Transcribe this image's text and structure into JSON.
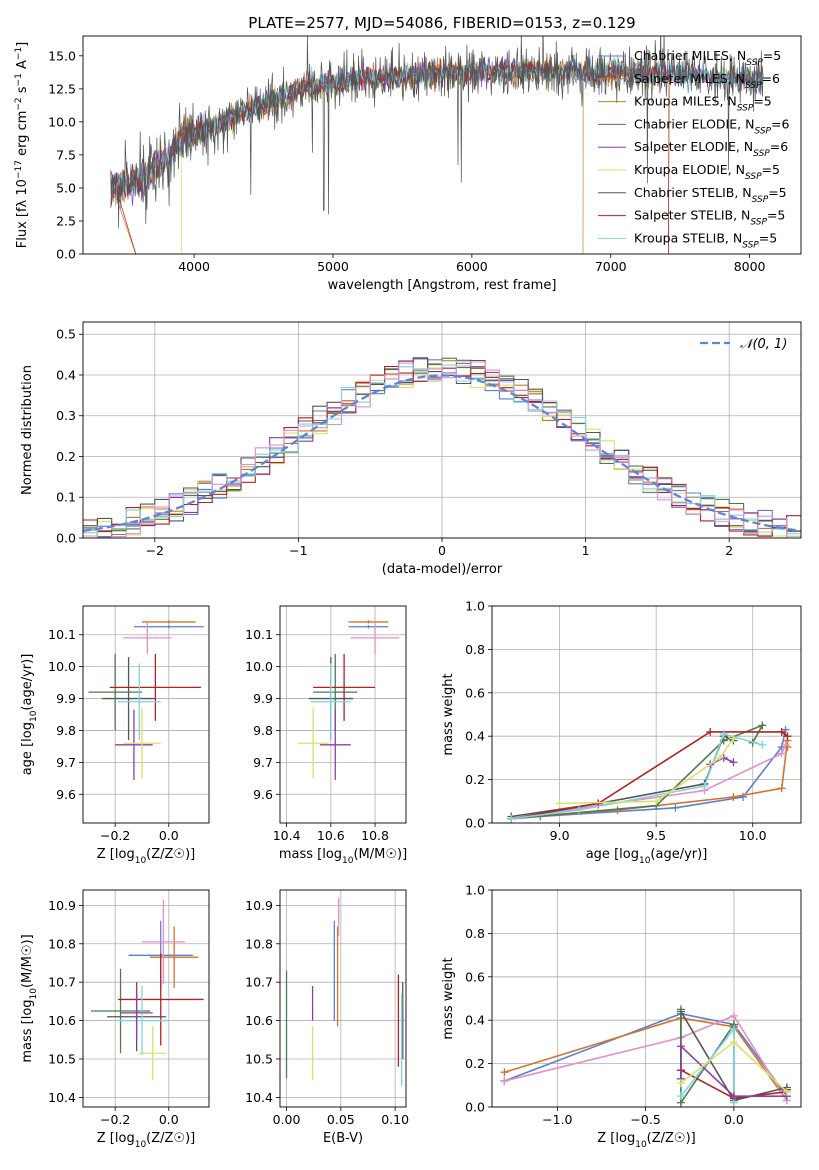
{
  "figure_title": "PLATE=2577, MJD=54086, FIBERID=0153, z=0.129",
  "chart_data": [
    {
      "id": "spectrum",
      "type": "line",
      "title": "PLATE=2577, MJD=54086, FIBERID=0153, z=0.129",
      "xlabel": "wavelength [Angstrom, rest frame]",
      "ylabel": "Flux [f_λ 10^-17 erg cm^-2 s^-1 A^-1]",
      "xlim": [
        3200,
        8370
      ],
      "ylim": [
        0,
        16.5
      ],
      "xticks": [
        "4000",
        "5000",
        "6000",
        "7000",
        "8000"
      ],
      "yticks": [
        "0.0",
        "2.5",
        "5.0",
        "7.5",
        "10.0",
        "12.5",
        "15.0"
      ],
      "grid": false,
      "legend_position": "upper right",
      "shape": {
        "wavelength": [
          3400,
          3500,
          3600,
          3700,
          3800,
          3900,
          4000,
          4100,
          4200,
          4400,
          4600,
          4800,
          5000,
          5200,
          5400,
          5600,
          5800,
          6000,
          6200,
          6400,
          6600,
          6800,
          7000,
          7200,
          7400,
          7600,
          7800,
          8000,
          8100
        ],
        "flux": [
          4.8,
          5.2,
          5.6,
          6.3,
          7.2,
          8.5,
          9.2,
          9.6,
          10.0,
          10.9,
          11.8,
          12.6,
          13.0,
          13.3,
          13.4,
          13.5,
          13.7,
          13.8,
          13.8,
          13.8,
          13.8,
          13.8,
          13.7,
          13.6,
          13.6,
          13.5,
          13.3,
          13.2,
          13.1
        ]
      },
      "series": [
        {
          "name": "Chabrier MILES, N_SSP=5",
          "color": "#5a7fd6"
        },
        {
          "name": "Salpeter MILES, N_SSP=6",
          "color": "#d4722a"
        },
        {
          "name": "Kroupa MILES, N_SSP=5",
          "color": "#b8862a"
        },
        {
          "name": "Chabrier ELODIE, N_SSP=6",
          "color": "#4e7a4e"
        },
        {
          "name": "Salpeter ELODIE, N_SSP=6",
          "color": "#8b3fa8"
        },
        {
          "name": "Kroupa ELODIE, N_SSP=5",
          "color": "#d7e26a"
        },
        {
          "name": "Chabrier STELIB, N_SSP=5",
          "color": "#555555"
        },
        {
          "name": "Salpeter STELIB, N_SSP=5",
          "color": "#b22222"
        },
        {
          "name": "Kroupa STELIB, N_SSP=5",
          "color": "#7fd3e0"
        }
      ]
    },
    {
      "id": "residuals",
      "type": "line",
      "xlabel": "(data-model)/error",
      "ylabel": "Normed distribution",
      "xlim": [
        -2.5,
        2.5
      ],
      "ylim": [
        0,
        0.53
      ],
      "xticks": [
        "−2",
        "−1",
        "0",
        "1",
        "2"
      ],
      "yticks": [
        "0.0",
        "0.1",
        "0.2",
        "0.3",
        "0.4",
        "0.5"
      ],
      "grid": true,
      "legend_position": "upper right",
      "normal_curve": {
        "name": "𝒩(0, 1)",
        "color": "#5b86d6",
        "style": "dashed"
      },
      "histogram_bin_width": 0.1,
      "histogram_colors": [
        "#5a7fd6",
        "#d4722a",
        "#4e7a4e",
        "#8b3fa8",
        "#d7e26a",
        "#555555",
        "#b22222",
        "#7fd3e0",
        "#e48fc9"
      ]
    },
    {
      "id": "age-vs-z",
      "type": "scatter",
      "xlabel": "Z [log10(Z/Z☉)]",
      "ylabel": "age [log10(age/yr)]",
      "xlim": [
        -0.32,
        0.15
      ],
      "ylim": [
        9.51,
        10.19
      ],
      "xticks": [
        "−0.2",
        "0.0"
      ],
      "yticks": [
        "9.6",
        "9.7",
        "9.8",
        "9.9",
        "10.0",
        "10.1"
      ],
      "grid": true,
      "points": [
        {
          "color": "#5a7fd6",
          "x": 0.0,
          "xerr": 0.13,
          "y": 10.125,
          "yerr": 0.005
        },
        {
          "color": "#d4722a",
          "x": 0.0,
          "xerr": 0.1,
          "y": 10.14,
          "yerr": 0.005
        },
        {
          "color": "#e48fc9",
          "x": -0.08,
          "xerr": 0.09,
          "y": 10.09,
          "yerr": 0.05
        },
        {
          "color": "#555555",
          "x": -0.15,
          "xerr": 0.1,
          "y": 9.9,
          "yerr": 0.13
        },
        {
          "color": "#4e7a4e",
          "x": -0.2,
          "xerr": 0.1,
          "y": 9.92,
          "yerr": 0.12
        },
        {
          "color": "#b22222",
          "x": -0.05,
          "xerr": 0.17,
          "y": 9.935,
          "yerr": 0.105
        },
        {
          "color": "#7fd3e0",
          "x": -0.11,
          "xerr": 0.08,
          "y": 9.89,
          "yerr": 0.12
        },
        {
          "color": "#8b3fa8",
          "x": -0.13,
          "xerr": 0.07,
          "y": 9.755,
          "yerr": 0.11
        },
        {
          "color": "#d7e26a",
          "x": -0.1,
          "xerr": 0.07,
          "y": 9.76,
          "yerr": 0.11
        }
      ]
    },
    {
      "id": "age-vs-mass",
      "type": "scatter",
      "xlabel": "mass [log10(M/M☉)]",
      "ylabel": "",
      "xlim": [
        10.37,
        10.94
      ],
      "ylim": [
        9.51,
        10.19
      ],
      "xticks": [
        "10.4",
        "10.6",
        "10.8"
      ],
      "yticks": [
        "9.6",
        "9.7",
        "9.8",
        "9.9",
        "10.0",
        "10.1"
      ],
      "grid": true,
      "points": [
        {
          "color": "#5a7fd6",
          "x": 10.77,
          "xerr": 0.09,
          "y": 10.125,
          "yerr": 0.005
        },
        {
          "color": "#d4722a",
          "x": 10.77,
          "xerr": 0.09,
          "y": 10.14,
          "yerr": 0.005
        },
        {
          "color": "#e48fc9",
          "x": 10.8,
          "xerr": 0.11,
          "y": 10.09,
          "yerr": 0.05
        },
        {
          "color": "#555555",
          "x": 10.6,
          "xerr": 0.1,
          "y": 9.9,
          "yerr": 0.13
        },
        {
          "color": "#4e7a4e",
          "x": 10.62,
          "xerr": 0.1,
          "y": 9.92,
          "yerr": 0.12
        },
        {
          "color": "#b22222",
          "x": 10.66,
          "xerr": 0.14,
          "y": 9.935,
          "yerr": 0.105
        },
        {
          "color": "#7fd3e0",
          "x": 10.6,
          "xerr": 0.09,
          "y": 9.89,
          "yerr": 0.12
        },
        {
          "color": "#8b3fa8",
          "x": 10.62,
          "xerr": 0.07,
          "y": 9.755,
          "yerr": 0.11
        },
        {
          "color": "#d7e26a",
          "x": 10.52,
          "xerr": 0.07,
          "y": 9.76,
          "yerr": 0.11
        }
      ]
    },
    {
      "id": "massweight-vs-age",
      "type": "line",
      "xlabel": "age [log10(age/yr)]",
      "ylabel": "mass weight",
      "xlim": [
        8.65,
        10.25
      ],
      "ylim": [
        0,
        1.0
      ],
      "xticks": [
        "9.0",
        "9.5",
        "10.0"
      ],
      "yticks": [
        "0.0",
        "0.2",
        "0.4",
        "0.6",
        "0.8",
        "1.0"
      ],
      "grid": true,
      "series": [
        {
          "color": "#5a7fd6",
          "x": [
            8.75,
            8.9,
            9.6,
            9.95,
            10.15,
            10.17
          ],
          "y": [
            0.02,
            0.03,
            0.07,
            0.12,
            0.35,
            0.43
          ]
        },
        {
          "color": "#d4722a",
          "x": [
            8.75,
            9.3,
            9.9,
            10.15,
            10.18,
            10.18
          ],
          "y": [
            0.02,
            0.06,
            0.12,
            0.16,
            0.38,
            0.35
          ]
        },
        {
          "color": "#e48fc9",
          "x": [
            8.75,
            9.2,
            9.75,
            10.15,
            10.17
          ],
          "y": [
            0.02,
            0.08,
            0.15,
            0.32,
            0.36
          ]
        },
        {
          "color": "#555555",
          "x": [
            8.75,
            9.2,
            9.75,
            9.85,
            9.9
          ],
          "y": [
            0.03,
            0.09,
            0.18,
            0.4,
            0.38
          ]
        },
        {
          "color": "#4e7a4e",
          "x": [
            8.75,
            9.5,
            9.85,
            10.05,
            10.0
          ],
          "y": [
            0.02,
            0.08,
            0.38,
            0.45,
            0.37
          ]
        },
        {
          "color": "#b22222",
          "x": [
            8.75,
            9.2,
            9.78,
            10.15,
            10.18
          ],
          "y": [
            0.02,
            0.09,
            0.42,
            0.42,
            0.4
          ]
        },
        {
          "color": "#7fd3e0",
          "x": [
            8.75,
            9.1,
            9.75,
            9.85,
            10.05
          ],
          "y": [
            0.02,
            0.06,
            0.17,
            0.41,
            0.36
          ]
        },
        {
          "color": "#8b3fa8",
          "x": [
            9.78,
            9.85,
            9.9
          ],
          "y": [
            0.27,
            0.3,
            0.28
          ]
        },
        {
          "color": "#d7e26a",
          "x": [
            9.0,
            9.5,
            9.83,
            9.9
          ],
          "y": [
            0.09,
            0.1,
            0.3,
            0.39
          ]
        }
      ]
    },
    {
      "id": "mass-vs-z",
      "type": "scatter",
      "xlabel": "Z [log10(Z/Z☉)]",
      "ylabel": "mass [log10(M/M☉)]",
      "xlim": [
        -0.32,
        0.15
      ],
      "ylim": [
        10.375,
        10.94
      ],
      "xticks": [
        "−0.2",
        "0.0"
      ],
      "yticks": [
        "10.4",
        "10.5",
        "10.6",
        "10.7",
        "10.8",
        "10.9"
      ],
      "grid": true,
      "points": [
        {
          "color": "#5a7fd6",
          "x": -0.03,
          "xerr": 0.12,
          "y": 10.77,
          "yerr": 0.09
        },
        {
          "color": "#d4722a",
          "x": 0.02,
          "xerr": 0.09,
          "y": 10.765,
          "yerr": 0.08
        },
        {
          "color": "#e48fc9",
          "x": -0.02,
          "xerr": 0.08,
          "y": 10.805,
          "yerr": 0.11
        },
        {
          "color": "#555555",
          "x": -0.12,
          "xerr": 0.11,
          "y": 10.61,
          "yerr": 0.09
        },
        {
          "color": "#4e7a4e",
          "x": -0.18,
          "xerr": 0.11,
          "y": 10.625,
          "yerr": 0.11
        },
        {
          "color": "#b22222",
          "x": -0.03,
          "xerr": 0.16,
          "y": 10.655,
          "yerr": 0.12
        },
        {
          "color": "#7fd3e0",
          "x": -0.1,
          "xerr": 0.1,
          "y": 10.6,
          "yerr": 0.09
        },
        {
          "color": "#8b3fa8",
          "x": -0.12,
          "xerr": 0.06,
          "y": 10.62,
          "yerr": 0.07
        },
        {
          "color": "#d7e26a",
          "x": -0.06,
          "xerr": 0.05,
          "y": 10.515,
          "yerr": 0.07
        }
      ]
    },
    {
      "id": "mass-vs-ebv",
      "type": "scatter",
      "xlabel": "E(B-V)",
      "ylabel": "",
      "xlim": [
        -0.006,
        0.11
      ],
      "ylim": [
        10.375,
        10.94
      ],
      "xticks": [
        "0.00",
        "0.05",
        "0.10"
      ],
      "yticks": [
        "10.4",
        "10.5",
        "10.6",
        "10.7",
        "10.8",
        "10.9"
      ],
      "grid": true,
      "points": [
        {
          "color": "#5a7fd6",
          "x": 0.044,
          "yerr": 0.13,
          "y": 10.73
        },
        {
          "color": "#d4722a",
          "x": 0.047,
          "yerr": 0.13,
          "y": 10.715
        },
        {
          "color": "#e48fc9",
          "x": 0.048,
          "yerr": 0.05,
          "y": 10.87
        },
        {
          "color": "#555555",
          "x": 0.107,
          "yerr": 0.1,
          "y": 10.6
        },
        {
          "color": "#4e7a4e",
          "x": 0.0,
          "yerr": 0.14,
          "y": 10.59
        },
        {
          "color": "#b22222",
          "x": 0.103,
          "yerr": 0.12,
          "y": 10.6
        },
        {
          "color": "#7fd3e0",
          "x": 0.106,
          "yerr": 0.12,
          "y": 10.55
        },
        {
          "color": "#8b3fa8",
          "x": 0.024,
          "yerr": 0.045,
          "y": 10.645
        },
        {
          "color": "#d7e26a",
          "x": 0.024,
          "yerr": 0.07,
          "y": 10.515
        }
      ]
    },
    {
      "id": "massweight-vs-z",
      "type": "line",
      "xlabel": "Z [log10(Z/Z☉)]",
      "ylabel": "mass weight",
      "xlim": [
        -1.37,
        0.38
      ],
      "ylim": [
        0,
        1.0
      ],
      "xticks": [
        "−1.0",
        "−0.5",
        "0.0"
      ],
      "yticks": [
        "0.0",
        "0.2",
        "0.4",
        "0.6",
        "0.8",
        "1.0"
      ],
      "grid": true,
      "series": [
        {
          "color": "#5a7fd6",
          "x": [
            -1.3,
            -0.3,
            0.0,
            0.3
          ],
          "y": [
            0.12,
            0.43,
            0.38,
            0.05
          ]
        },
        {
          "color": "#d4722a",
          "x": [
            -1.3,
            -0.3,
            0.0,
            0.3
          ],
          "y": [
            0.16,
            0.41,
            0.37,
            0.03
          ]
        },
        {
          "color": "#e48fc9",
          "x": [
            -1.3,
            -0.3,
            0.0,
            0.3
          ],
          "y": [
            0.12,
            0.32,
            0.42,
            0.03
          ]
        },
        {
          "color": "#555555",
          "x": [
            -0.3,
            -0.3,
            0.0,
            0.3
          ],
          "y": [
            0.17,
            0.44,
            0.03,
            0.09
          ]
        },
        {
          "color": "#4e7a4e",
          "x": [
            -0.3,
            -0.3,
            0.0,
            0.0
          ],
          "y": [
            0.45,
            0.02,
            0.38,
            0.03
          ]
        },
        {
          "color": "#b22222",
          "x": [
            -0.3,
            0.0,
            0.3,
            0.3
          ],
          "y": [
            0.17,
            0.04,
            0.07,
            0.08
          ]
        },
        {
          "color": "#7fd3e0",
          "x": [
            -0.3,
            0.0,
            0.0
          ],
          "y": [
            0.05,
            0.36,
            0.02
          ]
        },
        {
          "color": "#8b3fa8",
          "x": [
            -0.3,
            -0.3,
            0.0,
            0.3
          ],
          "y": [
            0.13,
            0.28,
            0.05,
            0.05
          ]
        },
        {
          "color": "#d7e26a",
          "x": [
            -0.3,
            0.0,
            0.3
          ],
          "y": [
            0.11,
            0.3,
            0.07
          ]
        }
      ]
    }
  ]
}
